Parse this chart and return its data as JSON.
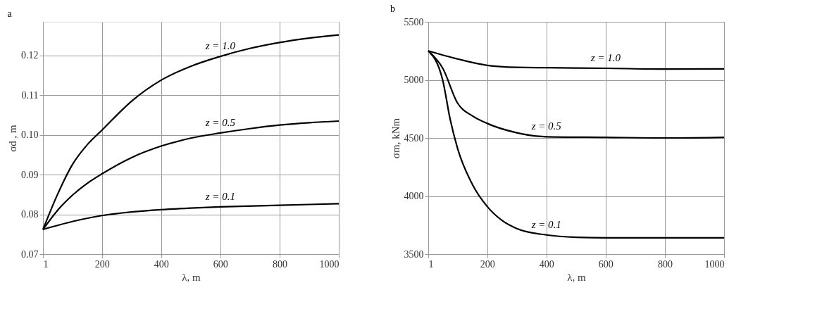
{
  "chart_data": [
    {
      "type": "line",
      "title": "a",
      "xlabel": "λ, m",
      "ylabel": "σd , m",
      "xlim": [
        1,
        1000
      ],
      "xticks": [
        1,
        200,
        400,
        600,
        800,
        1000
      ],
      "ylim": [
        0.07,
        0.1285
      ],
      "yticks": [
        0.07,
        0.08,
        0.09,
        {
          "value": 0.1,
          "label": "0.10"
        },
        0.11,
        0.12
      ],
      "grid": true,
      "marker": "none",
      "line_style": "solid",
      "series": [
        {
          "name": "z = 1.0",
          "color": "#000000",
          "x": [
            1,
            50,
            100,
            150,
            200,
            300,
            400,
            500,
            600,
            700,
            800,
            900,
            1000
          ],
          "values": [
            0.0762,
            0.085,
            0.0925,
            0.0975,
            0.1012,
            0.1085,
            0.1138,
            0.1173,
            0.1198,
            0.1218,
            0.1233,
            0.1244,
            0.1252
          ]
        },
        {
          "name": "z = 0.5",
          "color": "#000000",
          "x": [
            1,
            50,
            100,
            150,
            200,
            300,
            400,
            500,
            600,
            700,
            800,
            900,
            1000
          ],
          "values": [
            0.0762,
            0.081,
            0.0848,
            0.0878,
            0.0902,
            0.0943,
            0.0972,
            0.0992,
            0.1005,
            0.1016,
            0.1025,
            0.1031,
            0.1035
          ]
        },
        {
          "name": "z = 0.1",
          "color": "#000000",
          "x": [
            1,
            100,
            200,
            300,
            400,
            500,
            600,
            800,
            1000
          ],
          "values": [
            0.0762,
            0.0782,
            0.0797,
            0.0806,
            0.0812,
            0.0816,
            0.0819,
            0.0823,
            0.0827
          ]
        }
      ]
    },
    {
      "type": "line",
      "title": "b",
      "xlabel": "λ, m",
      "ylabel": "σm, kNm",
      "xlim": [
        1,
        1000
      ],
      "xticks": [
        1,
        200,
        400,
        600,
        800,
        1000
      ],
      "ylim": [
        3500,
        5500
      ],
      "yticks": [
        3500,
        4000,
        4500,
        5000,
        5500
      ],
      "grid": true,
      "marker": "none",
      "line_style": "solid",
      "series": [
        {
          "name": "z = 1.0",
          "color": "#000000",
          "x": [
            1,
            100,
            200,
            300,
            400,
            600,
            800,
            1000
          ],
          "values": [
            5250,
            5180,
            5125,
            5108,
            5105,
            5100,
            5093,
            5095
          ]
        },
        {
          "name": "z = 0.5",
          "color": "#000000",
          "x": [
            1,
            50,
            100,
            150,
            200,
            300,
            400,
            600,
            800,
            1000
          ],
          "values": [
            5250,
            5100,
            4800,
            4690,
            4625,
            4545,
            4510,
            4505,
            4500,
            4505
          ]
        },
        {
          "name": "z = 0.1",
          "color": "#000000",
          "x": [
            1,
            50,
            75,
            100,
            150,
            200,
            250,
            300,
            400,
            500,
            600,
            800,
            1000
          ],
          "values": [
            5250,
            4995,
            4660,
            4410,
            4100,
            3910,
            3790,
            3720,
            3665,
            3645,
            3640,
            3640,
            3640
          ]
        }
      ]
    }
  ]
}
